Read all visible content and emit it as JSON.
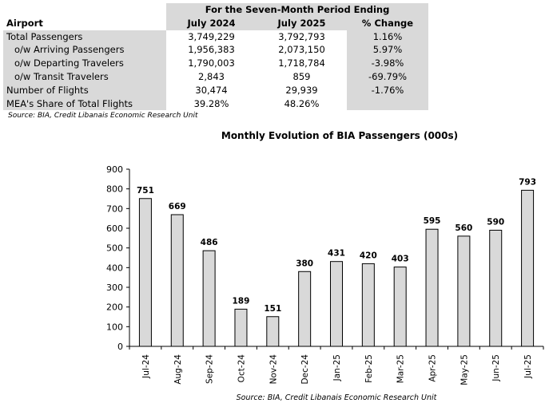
{
  "table": {
    "header_span": "For the Seven-Month Period Ending",
    "columns": [
      "Airport",
      "July 2024",
      "July 2025",
      "% Change"
    ],
    "rows": [
      {
        "label": "Total Passengers",
        "v1": "3,749,229",
        "v2": "3,792,793",
        "chg": "1.16%",
        "indent": false
      },
      {
        "label": "o/w Arriving Passengers",
        "v1": "1,956,383",
        "v2": "2,073,150",
        "chg": "5.97%",
        "indent": true
      },
      {
        "label": "o/w Departing Travelers",
        "v1": "1,790,003",
        "v2": "1,718,784",
        "chg": "-3.98%",
        "indent": true
      },
      {
        "label": "o/w Transit Travelers",
        "v1": "2,843",
        "v2": "859",
        "chg": "-69.79%",
        "indent": true
      },
      {
        "label": "Number of Flights",
        "v1": "30,474",
        "v2": "29,939",
        "chg": "-1.76%",
        "indent": false
      },
      {
        "label": "MEA's Share of Total Flights",
        "v1": "39.28%",
        "v2": "48.26%",
        "chg": "",
        "indent": false
      }
    ],
    "source": "Source: BIA, Credit Libanais Economic Research Unit"
  },
  "chart_data": {
    "type": "bar",
    "title": "Monthly Evolution of BIA Passengers (000s)",
    "categories": [
      "Jul-24",
      "Aug-24",
      "Sep-24",
      "Oct-24",
      "Nov-24",
      "Dec-24",
      "Jan-25",
      "Feb-25",
      "Mar-25",
      "Apr-25",
      "May-25",
      "Jun-25",
      "Jul-25"
    ],
    "values": [
      751,
      669,
      486,
      189,
      151,
      380,
      431,
      420,
      403,
      595,
      560,
      590,
      793
    ],
    "ylim": [
      0,
      900
    ],
    "yticks": [
      0,
      100,
      200,
      300,
      400,
      500,
      600,
      700,
      800,
      900
    ],
    "grid": false,
    "legend": "none",
    "colors": {
      "bar_fill": "#d9d9d9",
      "bar_stroke": "#000000"
    },
    "source": "Source: BIA, Credit Libanais Economic Research Unit"
  }
}
